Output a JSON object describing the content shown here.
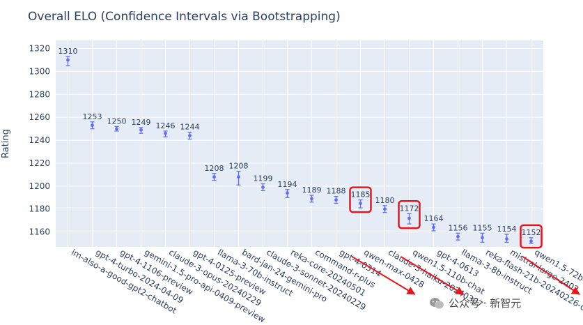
{
  "chart_data": {
    "type": "scatter",
    "title": "Overall ELO (Confidence Intervals via Bootstrapping)",
    "xlabel": "",
    "ylabel": "Rating",
    "ylim": [
      1147,
      1327
    ],
    "yticks": [
      1160,
      1180,
      1200,
      1220,
      1240,
      1260,
      1280,
      1300,
      1320
    ],
    "grid": true,
    "categories": [
      "im-also-a-good-gpt2-chatbot",
      "gpt-4-turbo-2024-04-09",
      "gpt-4-1106-preview",
      "gemini-1.5-pro-api-0409-preview",
      "claude-3-opus-20240229",
      "gpt-4-0125-preview",
      "llama-3-70b-instruct",
      "bard-jan-24-gemini-pro",
      "claude-3-sonnet-20240229",
      "reka-core-20240501",
      "command-r-plus",
      "gpt-4-0314",
      "qwen-max-0428",
      "claude-3-haiku-20240307",
      "qwen1.5-110b-chat",
      "gpt-4-0613",
      "llama-3-8b-instruct",
      "reka-flash-21b-20240226-online",
      "mistral-large-2402",
      "qwen1.5-72b-chat"
    ],
    "values": [
      1310,
      1253,
      1250,
      1249,
      1246,
      1244,
      1208,
      1208,
      1199,
      1194,
      1189,
      1188,
      1185,
      1180,
      1172,
      1164,
      1156,
      1155,
      1154,
      1152
    ],
    "ci_lower": [
      1305,
      1250,
      1248,
      1246,
      1243,
      1241,
      1205,
      1201,
      1196,
      1190,
      1186,
      1185,
      1181,
      1177,
      1167,
      1161,
      1153,
      1151,
      1151,
      1150
    ],
    "ci_upper": [
      1313,
      1256,
      1252,
      1251,
      1248,
      1247,
      1211,
      1213,
      1202,
      1197,
      1192,
      1191,
      1188,
      1183,
      1176,
      1167,
      1159,
      1159,
      1158,
      1155
    ],
    "highlighted": [
      "qwen-max-0428",
      "qwen1.5-110b-chat",
      "qwen1.5-72b-chat"
    ],
    "colors": {
      "marker": "#636efa",
      "plot_bg": "#e5ecf6",
      "grid": "#ffffff",
      "text": "#2a3f5f",
      "highlight": "#e8151b"
    }
  },
  "watermark": {
    "text": "公众号 · 新智元"
  }
}
